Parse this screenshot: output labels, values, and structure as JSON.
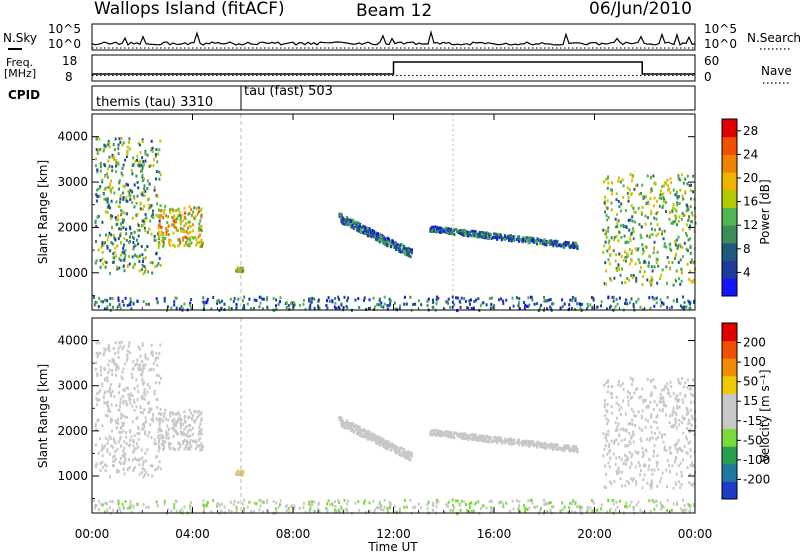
{
  "header": {
    "station": "Wallops Island (fitACF)",
    "beam": "Beam 12",
    "date": "06/Jun/2010"
  },
  "strip_nsky": {
    "left_label": "N.Sky",
    "right_label": "N.Search",
    "tick_top": "10^5",
    "tick_bottom": "10^0"
  },
  "strip_freq": {
    "left_label_line1": "Freq.",
    "left_label_line2": "[MHz]",
    "right_label": "Nave",
    "left_tick_top": "18",
    "left_tick_bottom": "8",
    "right_tick_top": "60",
    "right_tick_bottom": "0"
  },
  "strip_cpid": {
    "left_label": "CPID",
    "segments": [
      {
        "label": "themis (tau) 3310",
        "start_hour": 0
      },
      {
        "label": "tau (fast) 503",
        "start_hour": 6
      }
    ]
  },
  "colors": {
    "power_scale": [
      "#1414ff",
      "#1e3c9b",
      "#1e5a80",
      "#3c8c5a",
      "#50b450",
      "#b4c800",
      "#f0b400",
      "#f08200",
      "#f05000",
      "#e10000"
    ],
    "velocity_scale": [
      "#1e3cc8",
      "#1e78a0",
      "#28a050",
      "#78dc3c",
      "#c8c8c8",
      "#c8c8c8",
      "#f0c800",
      "#f08c00",
      "#f05000",
      "#e10000"
    ]
  },
  "x_axis": {
    "label": "Time UT",
    "ticks": [
      "00:00",
      "04:00",
      "08:00",
      "12:00",
      "16:00",
      "20:00",
      "00:00"
    ]
  },
  "chart_data": [
    {
      "type": "heatmap",
      "panel": "power",
      "ylabel": "Slant Range [km]",
      "ylim": [
        180,
        4500
      ],
      "yticks": [
        "1000",
        "2000",
        "3000",
        "4000"
      ],
      "x_range_hours": [
        0,
        24
      ],
      "colorbar": {
        "label": "Power [dB]",
        "ticks": [
          "4",
          "8",
          "12",
          "16",
          "20",
          "24",
          "28"
        ],
        "range": [
          0,
          30
        ]
      },
      "echo_regions": [
        {
          "t0": 0.1,
          "t1": 2.7,
          "r0": 1000,
          "r1": 4000,
          "value_mean": 12
        },
        {
          "t0": 2.6,
          "t1": 4.4,
          "r0": 1600,
          "r1": 2500,
          "value_mean": 18
        },
        {
          "t0": 5.7,
          "t1": 6.0,
          "r0": 1050,
          "r1": 1150,
          "value_mean": 18
        },
        {
          "t0": 9.8,
          "t1": 12.7,
          "r0": 1300,
          "r1": 2300,
          "value_mean": 8
        },
        {
          "t0": 13.4,
          "t1": 19.3,
          "r0": 1500,
          "r1": 2100,
          "value_mean": 8
        },
        {
          "t0": 20.3,
          "t1": 24.0,
          "r0": 750,
          "r1": 3200,
          "value_mean": 14
        },
        {
          "t0": 0.0,
          "t1": 24.0,
          "r0": 200,
          "r1": 500,
          "value_mean": 8
        }
      ]
    },
    {
      "type": "heatmap",
      "panel": "velocity",
      "ylabel": "Slant Range [km]",
      "ylim": [
        180,
        4500
      ],
      "yticks": [
        "1000",
        "2000",
        "3000",
        "4000"
      ],
      "x_range_hours": [
        0,
        24
      ],
      "colorbar": {
        "label": "Velocity [m s⁻¹]",
        "ticks": [
          "200",
          "100",
          "50",
          "15",
          "-15",
          "-50",
          "-100",
          "-200"
        ],
        "range": [
          -250,
          250
        ]
      },
      "echo_regions": [
        {
          "t0": 0.1,
          "t1": 2.7,
          "r0": 1000,
          "r1": 4000,
          "value_mean": 0
        },
        {
          "t0": 2.6,
          "t1": 4.4,
          "r0": 1600,
          "r1": 2500,
          "value_mean": 0
        },
        {
          "t0": 5.7,
          "t1": 6.0,
          "r0": 1050,
          "r1": 1150,
          "value_mean": 60
        },
        {
          "t0": 9.8,
          "t1": 12.7,
          "r0": 1300,
          "r1": 2300,
          "value_mean": 0
        },
        {
          "t0": 13.4,
          "t1": 19.3,
          "r0": 1500,
          "r1": 2100,
          "value_mean": 0
        },
        {
          "t0": 20.3,
          "t1": 24.0,
          "r0": 750,
          "r1": 3200,
          "value_mean": 0
        },
        {
          "t0": 0.0,
          "t1": 24.0,
          "r0": 200,
          "r1": 500,
          "value_mean": -40
        }
      ]
    }
  ]
}
